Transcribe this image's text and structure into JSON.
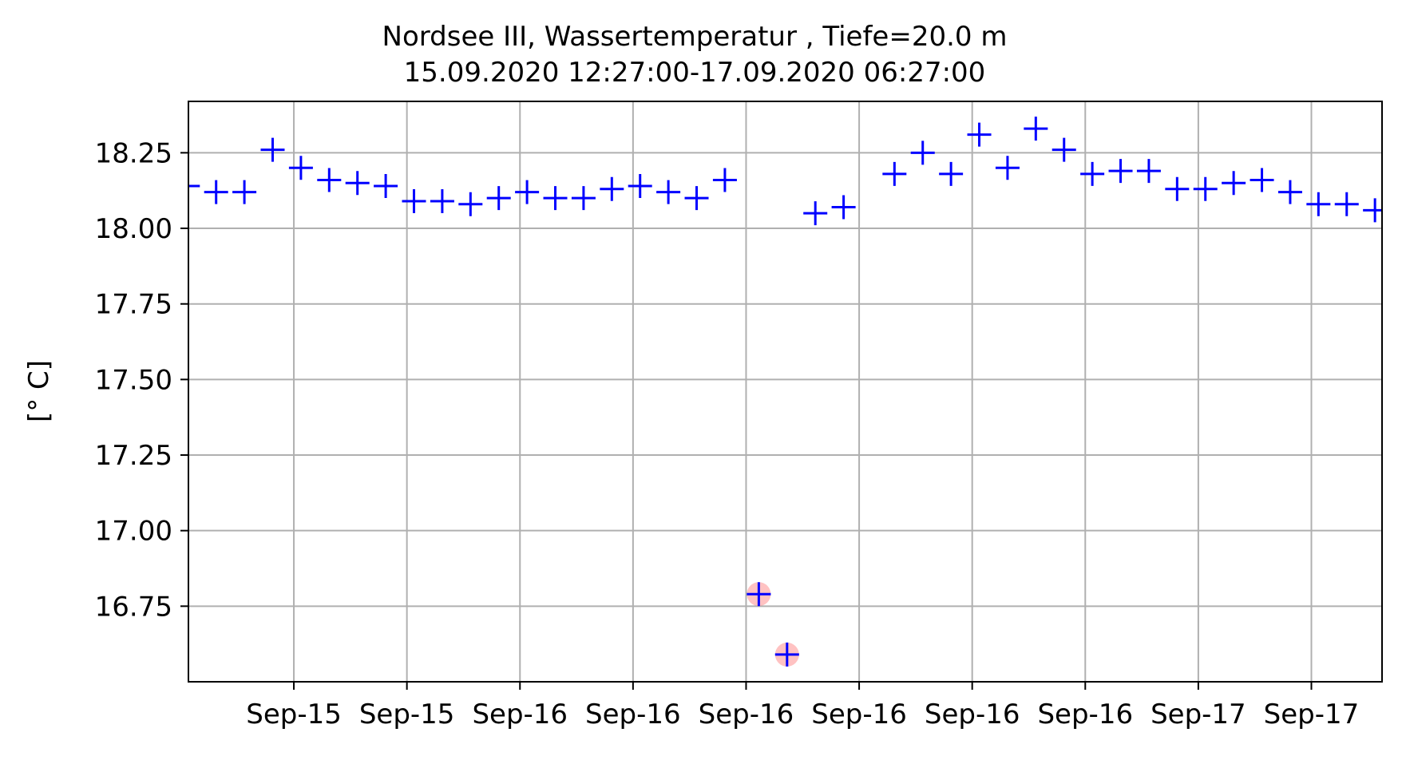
{
  "chart_data": {
    "type": "scatter",
    "title": "Nordsee III, Wassertemperatur , Tiefe=20.0 m",
    "subtitle": "15.09.2020 12:27:00-17.09.2020 06:27:00",
    "xlabel": "",
    "ylabel": "[° C]",
    "x_range_hours": [
      12.27,
      54.5
    ],
    "ylim": [
      16.5,
      18.42
    ],
    "grid": true,
    "marker": "+",
    "colors": {
      "points": "#0000ff",
      "flagged": "#ff9999",
      "grid": "#b0b0b0"
    },
    "x_ticks": [
      {
        "hour": 16,
        "label": "Sep-15"
      },
      {
        "hour": 20,
        "label": "Sep-15"
      },
      {
        "hour": 24,
        "label": "Sep-16"
      },
      {
        "hour": 28,
        "label": "Sep-16"
      },
      {
        "hour": 32,
        "label": "Sep-16"
      },
      {
        "hour": 36,
        "label": "Sep-16"
      },
      {
        "hour": 40,
        "label": "Sep-16"
      },
      {
        "hour": 44,
        "label": "Sep-16"
      },
      {
        "hour": 48,
        "label": "Sep-17"
      },
      {
        "hour": 52,
        "label": "Sep-17"
      }
    ],
    "y_ticks": [
      {
        "value": 16.75,
        "label": "16.75"
      },
      {
        "value": 17.0,
        "label": "17.00"
      },
      {
        "value": 17.25,
        "label": "17.25"
      },
      {
        "value": 17.5,
        "label": "17.50"
      },
      {
        "value": 17.75,
        "label": "17.75"
      },
      {
        "value": 18.0,
        "label": "18.00"
      },
      {
        "value": 18.25,
        "label": "18.25"
      }
    ],
    "points": [
      {
        "hour": 12.25,
        "value": 18.14
      },
      {
        "hour": 13.25,
        "value": 18.12
      },
      {
        "hour": 14.25,
        "value": 18.12
      },
      {
        "hour": 15.25,
        "value": 18.26
      },
      {
        "hour": 16.25,
        "value": 18.2
      },
      {
        "hour": 17.25,
        "value": 18.16
      },
      {
        "hour": 18.25,
        "value": 18.15
      },
      {
        "hour": 19.25,
        "value": 18.14
      },
      {
        "hour": 20.25,
        "value": 18.09
      },
      {
        "hour": 21.25,
        "value": 18.09
      },
      {
        "hour": 22.25,
        "value": 18.08
      },
      {
        "hour": 23.25,
        "value": 18.1
      },
      {
        "hour": 24.25,
        "value": 18.12
      },
      {
        "hour": 25.25,
        "value": 18.1
      },
      {
        "hour": 26.25,
        "value": 18.1
      },
      {
        "hour": 27.25,
        "value": 18.13
      },
      {
        "hour": 28.25,
        "value": 18.14
      },
      {
        "hour": 29.25,
        "value": 18.12
      },
      {
        "hour": 30.25,
        "value": 18.1
      },
      {
        "hour": 31.25,
        "value": 18.16
      },
      {
        "hour": 32.45,
        "value": 16.79,
        "flagged": true
      },
      {
        "hour": 33.45,
        "value": 16.59,
        "flagged": true
      },
      {
        "hour": 34.45,
        "value": 18.05
      },
      {
        "hour": 35.45,
        "value": 18.07
      },
      {
        "hour": 37.25,
        "value": 18.18
      },
      {
        "hour": 38.25,
        "value": 18.25
      },
      {
        "hour": 39.25,
        "value": 18.18
      },
      {
        "hour": 40.25,
        "value": 18.31
      },
      {
        "hour": 41.25,
        "value": 18.2
      },
      {
        "hour": 42.25,
        "value": 18.33
      },
      {
        "hour": 43.25,
        "value": 18.26
      },
      {
        "hour": 44.25,
        "value": 18.18
      },
      {
        "hour": 45.25,
        "value": 18.19
      },
      {
        "hour": 46.25,
        "value": 18.19
      },
      {
        "hour": 47.25,
        "value": 18.13
      },
      {
        "hour": 48.25,
        "value": 18.13
      },
      {
        "hour": 49.25,
        "value": 18.15
      },
      {
        "hour": 50.25,
        "value": 18.16
      },
      {
        "hour": 51.25,
        "value": 18.12
      },
      {
        "hour": 52.25,
        "value": 18.08
      },
      {
        "hour": 53.25,
        "value": 18.08
      },
      {
        "hour": 54.25,
        "value": 18.06
      }
    ]
  }
}
